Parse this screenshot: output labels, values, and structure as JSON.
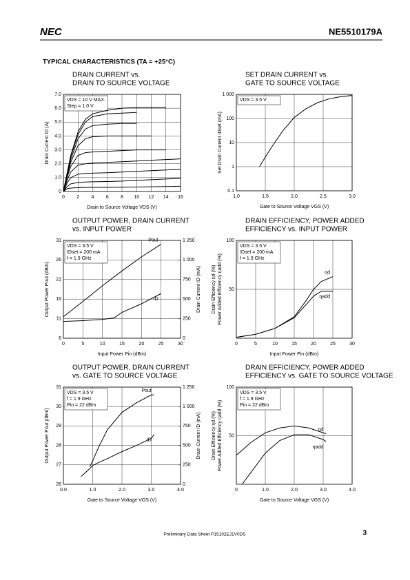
{
  "header": {
    "logo": "NEC",
    "part": "NE5510179A",
    "section": "TYPICAL  CHARACTERISTICS (TA = +25°C)"
  },
  "footer": {
    "text": "Preliminary Data Sheet  P15192EJ1V0DS",
    "page": "3"
  },
  "chart_data": [
    {
      "type": "line",
      "title": [
        "DRAIN CURRENT vs.",
        "DRAIN TO SOURCE VOLTAGE"
      ],
      "xlabel": "Drain to Source Voltage  VDS (V)",
      "ylabel": "Drain Current  ID (A)",
      "annotations": [
        "VDS = 10 V MAX.",
        "Step = 1.0 V"
      ],
      "x": [
        0,
        0.5,
        1,
        2,
        3,
        4,
        6,
        8,
        10,
        12,
        14,
        16
      ],
      "series": [
        {
          "color": "#000",
          "values": [
            0,
            0.2,
            0.25,
            0.28,
            0.29,
            0.3,
            0.3,
            0.31,
            0.32,
            0.34,
            0.36,
            0.38
          ]
        },
        {
          "color": "#000",
          "values": [
            0,
            0.35,
            0.55,
            0.65,
            0.68,
            0.7,
            0.72,
            0.75,
            0.8,
            0.85,
            0.9,
            0.95
          ]
        },
        {
          "color": "#000",
          "values": [
            0,
            0.6,
            1.0,
            1.25,
            1.3,
            1.32,
            1.35,
            1.4,
            1.45,
            1.5,
            1.55,
            1.6
          ]
        },
        {
          "color": "#000",
          "values": [
            0,
            0.8,
            1.4,
            1.9,
            2.0,
            2.05,
            2.1,
            2.15,
            2.2,
            2.25,
            2.3,
            2.35
          ]
        },
        {
          "color": "#000",
          "values": [
            0,
            1.0,
            1.8,
            2.6,
            2.8,
            2.85,
            2.9,
            2.95,
            3.0,
            3.0,
            3.0,
            null
          ]
        },
        {
          "color": "#000",
          "values": [
            0,
            1.1,
            2.1,
            3.3,
            3.8,
            3.95,
            4.0,
            4.0,
            4.0,
            4.0,
            null,
            null
          ]
        },
        {
          "color": "#000",
          "values": [
            0,
            1.2,
            2.3,
            3.8,
            4.5,
            4.75,
            4.85,
            4.9,
            4.9,
            null,
            null,
            null
          ]
        },
        {
          "color": "#000",
          "values": [
            0,
            1.3,
            2.5,
            4.1,
            5.0,
            5.4,
            5.6,
            5.65,
            5.7,
            null,
            null,
            null
          ]
        },
        {
          "color": "#000",
          "values": [
            0,
            1.3,
            2.6,
            4.3,
            5.2,
            5.6,
            5.85,
            6.0,
            6.05,
            6.05,
            6.05,
            null
          ]
        }
      ],
      "xlim": [
        0,
        16
      ],
      "xticks": [
        0,
        2,
        4,
        6,
        8,
        10,
        12,
        14,
        16
      ],
      "ylim": [
        0,
        7
      ],
      "yticks": [
        0,
        {
          "value": 1,
          "label": "1.0"
        },
        {
          "value": 2,
          "label": "2.0"
        },
        {
          "value": 3,
          "label": "3.0"
        },
        {
          "value": 4,
          "label": "4.0"
        },
        {
          "value": 5,
          "label": "5.0"
        },
        {
          "value": 6,
          "label": "6.0"
        },
        {
          "value": 7,
          "label": "7.0"
        }
      ],
      "grid": true
    },
    {
      "type": "line",
      "title": [
        "SET DRAIN CURRENT vs.",
        "GATE TO SOURCE VOLTAGE"
      ],
      "xlabel": "Gate to Source Voltage  VGS (V)",
      "ylabel": "Set Drain Current  IDset (mA)",
      "annotations": [
        "VDS = 3.5 V"
      ],
      "x": [
        1.4,
        1.5,
        1.6,
        1.8,
        2.0,
        2.2,
        2.4,
        2.6,
        2.8,
        3.0
      ],
      "series": [
        {
          "color": "#000",
          "values": [
            1,
            2.5,
            6,
            30,
            110,
            250,
            450,
            650,
            800,
            900
          ]
        }
      ],
      "xlim": [
        1,
        3
      ],
      "xticks": [
        {
          "value": 1,
          "label": "1.0"
        },
        1.5,
        {
          "value": 2,
          "label": "2.0"
        },
        2.5,
        {
          "value": 3,
          "label": "3.0"
        }
      ],
      "ylim": [
        0.1,
        1000
      ],
      "yticks": [
        0.1,
        1,
        10,
        100,
        {
          "value": 1000,
          "label": "1 000"
        }
      ],
      "ylog": true,
      "grid": true
    },
    {
      "type": "line",
      "title": [
        "OUTPUT POWER, DRAIN CURRENT",
        "vs. INPUT POWER"
      ],
      "xlabel": "Input Power  Pin (dBm)",
      "ylabel": "Output Power  Pout (dBm)",
      "y2label": "Drain Current  ID (mA)",
      "annotations": [
        "VDS = 3.5 V",
        "IDset = 200 mA",
        "f = 1.9 GHz"
      ],
      "x": [
        0,
        5,
        10,
        13,
        15,
        20,
        25
      ],
      "series": [
        {
          "name": "Pout",
          "color": "#000",
          "values": [
            11.5,
            15.4,
            19.4,
            21.7,
            23.2,
            26.8,
            30
          ]
        },
        {
          "name": "ID",
          "color": "#000",
          "axis": "y2",
          "values": [
            215,
            225,
            240,
            260,
            330,
            440,
            570
          ]
        }
      ],
      "xlim": [
        0,
        30
      ],
      "xticks": [
        0,
        5,
        10,
        15,
        20,
        25,
        30
      ],
      "ylim": [
        6,
        31
      ],
      "yticks": [
        6,
        11,
        16,
        21,
        26,
        31
      ],
      "y2lim": [
        0,
        1250
      ],
      "y2ticks": [
        0,
        250,
        500,
        750,
        {
          "value": 1000,
          "label": "1 000"
        },
        {
          "value": 1250,
          "label": "1 250"
        }
      ],
      "grid": true
    },
    {
      "type": "line",
      "title": [
        "DRAIN EFFICIENCY, POWER ADDED",
        "EFFICIENCY vs. INPUT POWER"
      ],
      "xlabel": "Input Power  Pin (dBm)",
      "ylabel": [
        "Drain Efficiency  ηd (%)",
        "Power Added Efficiency  ηadd (%)"
      ],
      "annotations": [
        "VDS = 3.5 V",
        "IDset = 200 mA",
        "f = 1.9 GHz"
      ],
      "x": [
        0,
        5,
        10,
        15,
        18,
        20,
        22,
        25
      ],
      "series": [
        {
          "name": "ηd",
          "color": "#000",
          "values": [
            1,
            4,
            10,
            22,
            38,
            50,
            58,
            63
          ]
        },
        {
          "name": "ηadd",
          "color": "#000",
          "values": [
            1,
            4,
            10,
            21,
            34,
            43,
            48,
            48
          ]
        }
      ],
      "xlim": [
        0,
        30
      ],
      "xticks": [
        0,
        5,
        10,
        15,
        20,
        25,
        30
      ],
      "ylim": [
        0,
        100
      ],
      "yticks": [
        50,
        100
      ],
      "grid": true
    },
    {
      "type": "line",
      "title": [
        "OUTPUT POWER, DRAIN CURRENT",
        "vs. GATE TO SOURCE VOLTAGE"
      ],
      "xlabel": "Gate to Source Voltage  VGS (V)",
      "ylabel": "Output Power  Pout (dBm)",
      "y2label": "Drain Current  ID (mA)",
      "annotations": [
        "VDS = 3.5 V",
        "f = 1.9 GHz",
        "Pin = 22 dBm"
      ],
      "x": [
        0.6,
        0.9,
        1.0,
        1.2,
        1.5,
        2.0,
        2.5,
        3.0,
        3.1
      ],
      "series": [
        {
          "name": "Pout",
          "color": "#000",
          "values": [
            null,
            26.9,
            27.2,
            27.9,
            28.8,
            29.7,
            30.2,
            30.6,
            30.6
          ]
        },
        {
          "name": "ID",
          "color": "#000",
          "axis": "y2",
          "values": [
            100,
            200,
            240,
            280,
            330,
            420,
            500,
            590,
            640
          ]
        }
      ],
      "xlim": [
        0,
        4
      ],
      "xticks": [
        {
          "value": 0,
          "label": "0.0"
        },
        {
          "value": 1,
          "label": "1.0"
        },
        {
          "value": 2,
          "label": "2.0"
        },
        {
          "value": 3,
          "label": "3.0"
        },
        {
          "value": 4,
          "label": "4.0"
        }
      ],
      "ylim": [
        26,
        31
      ],
      "yticks": [
        26,
        27,
        28,
        29,
        30,
        31
      ],
      "y2lim": [
        0,
        1250
      ],
      "y2ticks": [
        0,
        250,
        500,
        750,
        {
          "value": 1000,
          "label": "1 000"
        },
        {
          "value": 1250,
          "label": "1 250"
        }
      ],
      "grid": true
    },
    {
      "type": "line",
      "title": [
        "DRAIN EFFICIENCY, POWER ADDED",
        "EFFICIENCY vs. GATE TO SOURCE VOLTAGE"
      ],
      "xlabel": "Gate to Source Voltage  VGS (V)",
      "ylabel": [
        "Drain Efficiency  ηd (%)",
        "Power Added Efficiency  ηadd (%)"
      ],
      "annotations": [
        "VDS = 3.5 V",
        "f = 1.9 GHz",
        "Pin = 22 dBm"
      ],
      "x": [
        0,
        0.2,
        0.5,
        1,
        1.5,
        2,
        2.5,
        3,
        3.1
      ],
      "series": [
        {
          "name": "ηd",
          "color": "#000",
          "values": [
            30,
            35,
            43,
            53,
            58,
            60,
            58,
            53,
            52
          ]
        },
        {
          "name": "ηadd",
          "color": "#000",
          "values": [
            null,
            0,
            12,
            32,
            45,
            51,
            51,
            46,
            44
          ]
        }
      ],
      "xlim": [
        0,
        4
      ],
      "xticks": [
        {
          "value": 0,
          "label": "0"
        },
        {
          "value": 1,
          "label": "1.0"
        },
        {
          "value": 2,
          "label": "2.0"
        },
        {
          "value": 3,
          "label": "3.0"
        },
        {
          "value": 4,
          "label": "4.0"
        }
      ],
      "ylim": [
        0,
        100
      ],
      "yticks": [
        50,
        100
      ],
      "grid": true
    }
  ]
}
